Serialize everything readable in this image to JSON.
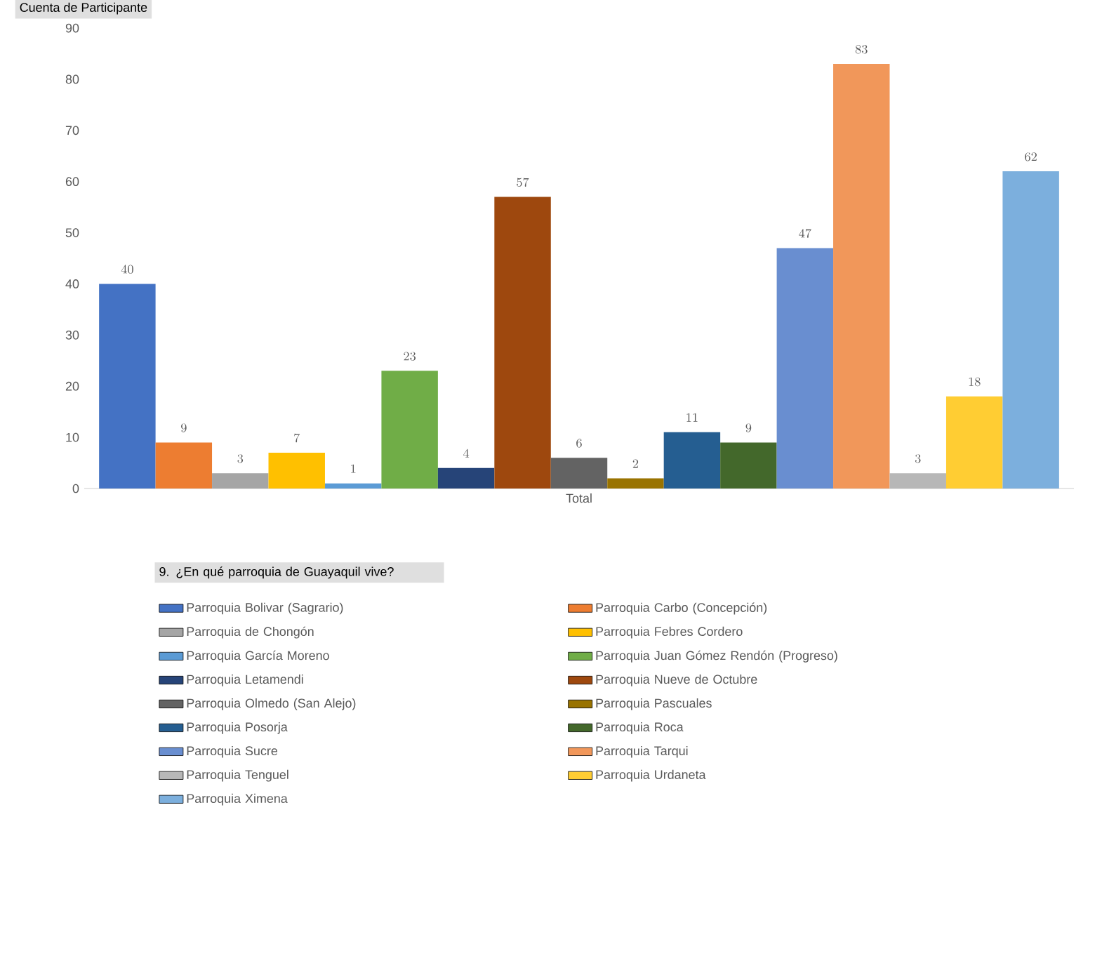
{
  "chart_data": {
    "type": "bar",
    "title": "Cuenta de Participante",
    "legend_title": "9. ¿En qué parroquia de Guayaquil vive?",
    "categories": [
      "Total"
    ],
    "ylim": [
      0,
      90
    ],
    "yticks": [
      0,
      10,
      20,
      30,
      40,
      50,
      60,
      70,
      80,
      90
    ],
    "data_labels": true,
    "legend": "bottom",
    "series": [
      {
        "name": "Parroquia Bolivar (Sagrario)",
        "color": "#4472c4",
        "values": [
          40
        ]
      },
      {
        "name": "Parroquia Carbo (Concepción)",
        "color": "#ed7d31",
        "values": [
          9
        ]
      },
      {
        "name": "Parroquia de Chongón",
        "color": "#a5a5a5",
        "values": [
          3
        ]
      },
      {
        "name": "Parroquia Febres Cordero",
        "color": "#ffc000",
        "values": [
          7
        ]
      },
      {
        "name": "Parroquia García Moreno",
        "color": "#5b9bd5",
        "values": [
          1
        ]
      },
      {
        "name": "Parroquia Juan Gómez Rendón (Progreso)",
        "color": "#70ad47",
        "values": [
          23
        ]
      },
      {
        "name": "Parroquia Letamendi",
        "color": "#264478",
        "values": [
          4
        ]
      },
      {
        "name": "Parroquia Nueve de Octubre",
        "color": "#9e480e",
        "values": [
          57
        ]
      },
      {
        "name": "Parroquia Olmedo (San Alejo)",
        "color": "#636363",
        "values": [
          6
        ]
      },
      {
        "name": "Parroquia Pascuales",
        "color": "#997300",
        "values": [
          2
        ]
      },
      {
        "name": "Parroquia Posorja",
        "color": "#255e91",
        "values": [
          11
        ]
      },
      {
        "name": "Parroquia Roca",
        "color": "#43682b",
        "values": [
          9
        ]
      },
      {
        "name": "Parroquia Sucre",
        "color": "#698ed0",
        "values": [
          47
        ]
      },
      {
        "name": "Parroquia Tarqui",
        "color": "#f1975a",
        "values": [
          83
        ]
      },
      {
        "name": "Parroquia Tenguel",
        "color": "#b7b7b7",
        "values": [
          3
        ]
      },
      {
        "name": "Parroquia Urdaneta",
        "color": "#ffcd33",
        "values": [
          18
        ]
      },
      {
        "name": "Parroquia Ximena",
        "color": "#7cafdd",
        "values": [
          62
        ]
      }
    ]
  }
}
